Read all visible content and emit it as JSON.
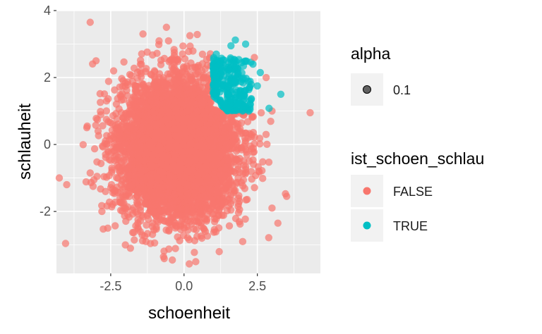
{
  "chart_data": {
    "type": "scatter",
    "xlabel": "schoenheit",
    "ylabel": "schlauheit",
    "xlim": [
      -4.35,
      4.65
    ],
    "ylim": [
      -3.85,
      4.0
    ],
    "x_ticks": [
      -2.5,
      0.0,
      2.5
    ],
    "x_tick_labels": [
      "-2.5",
      "0.0",
      "2.5"
    ],
    "y_ticks": [
      -2,
      0,
      2,
      4
    ],
    "y_tick_labels": [
      "-2",
      "0",
      "2",
      "4"
    ],
    "grid": true,
    "legend_position": "right",
    "alpha_legend": {
      "title": "alpha",
      "label": "0.1"
    },
    "color_legend": {
      "title": "ist_schoen_schlau",
      "entries": [
        "FALSE",
        "TRUE"
      ]
    },
    "colors": {
      "FALSE": "#F8766D",
      "TRUE": "#00BFC4",
      "panel": "#EBEBEB",
      "grid": "#FFFFFF"
    },
    "point_alpha": 0.7,
    "cloud": {
      "FALSE": {
        "x_mean": -0.2,
        "x_sd": 0.98,
        "y_mean": -0.1,
        "y_sd": 1.02,
        "n": 5500
      },
      "TRUE": {
        "x_min": 1.0,
        "x_max": 2.3,
        "y_min": 1.0,
        "y_max": 2.6,
        "n": 320
      }
    },
    "series": [
      {
        "name": "FALSE",
        "points": [
          [
            -3.2,
            3.65
          ],
          [
            -4.0,
            -1.2
          ],
          [
            4.3,
            0.95
          ],
          [
            3.5,
            -1.55
          ],
          [
            3.2,
            -2.35
          ],
          [
            -3.0,
            2.5
          ],
          [
            -3.1,
            -1.25
          ],
          [
            -3.3,
            0.55
          ],
          [
            -3.2,
            -0.85
          ],
          [
            -2.8,
            -2.0
          ],
          [
            -1.4,
            3.3
          ],
          [
            0.2,
            3.25
          ],
          [
            -0.6,
            3.5
          ],
          [
            -1.3,
            -2.9
          ],
          [
            -0.7,
            -3.35
          ],
          [
            0.4,
            -3.5
          ],
          [
            -2.0,
            -3.0
          ],
          [
            1.2,
            -3.2
          ],
          [
            2.0,
            -2.9
          ],
          [
            3.0,
            1.0
          ],
          [
            2.8,
            2.0
          ],
          [
            3.0,
            -1.9
          ],
          [
            -2.6,
            -2.5
          ],
          [
            -2.4,
            2.2
          ],
          [
            2.4,
            2.6
          ]
        ]
      },
      {
        "name": "TRUE",
        "points": [
          [
            1.75,
            3.12
          ],
          [
            2.1,
            3.0
          ],
          [
            2.6,
            2.15
          ],
          [
            3.3,
            1.5
          ],
          [
            2.9,
            1.08
          ],
          [
            2.5,
            1.75
          ],
          [
            1.1,
            2.7
          ],
          [
            1.0,
            1.55
          ],
          [
            1.6,
            2.95
          ],
          [
            2.35,
            2.4
          ]
        ]
      }
    ]
  }
}
